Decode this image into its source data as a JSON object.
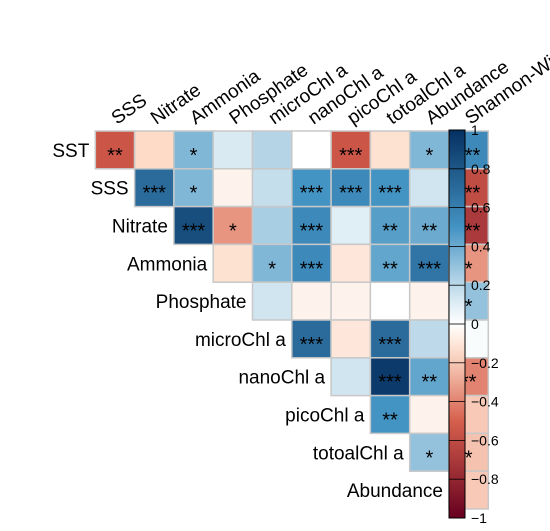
{
  "chart_data": {
    "type": "heatmap",
    "layout": "upper-triangle correlation matrix",
    "column_labels": [
      "SSS",
      "Nitrate",
      "Ammonia",
      "Phosphate",
      "microChl a",
      "nanoChl a",
      "picoChl a",
      "totoalChl a",
      "Abundance",
      "Shannon-Wiener"
    ],
    "row_labels": [
      "SST",
      "SSS",
      "Nitrate",
      "Ammonia",
      "Phosphate",
      "microChl a",
      "nanoChl a",
      "picoChl a",
      "totoalChl a",
      "Abundance"
    ],
    "values": [
      [
        -0.55,
        -0.15,
        0.35,
        0.12,
        0.22,
        0.0,
        -0.55,
        -0.12,
        0.35,
        0.55
      ],
      [
        null,
        0.7,
        0.35,
        -0.05,
        0.18,
        0.5,
        0.55,
        0.5,
        0.15,
        -0.6
      ],
      [
        null,
        null,
        0.85,
        -0.35,
        0.25,
        0.55,
        0.1,
        0.45,
        0.4,
        -0.7
      ],
      [
        null,
        null,
        null,
        -0.12,
        0.35,
        0.55,
        -0.1,
        0.42,
        0.65,
        -0.35
      ],
      [
        null,
        null,
        null,
        null,
        0.15,
        -0.05,
        -0.05,
        0.0,
        -0.05,
        0.3
      ],
      [
        null,
        null,
        null,
        null,
        null,
        0.7,
        -0.1,
        0.7,
        0.2,
        0.02
      ],
      [
        null,
        null,
        null,
        null,
        null,
        null,
        0.15,
        0.95,
        0.42,
        -0.4
      ],
      [
        null,
        null,
        null,
        null,
        null,
        null,
        null,
        0.5,
        -0.05,
        -0.2
      ],
      [
        null,
        null,
        null,
        null,
        null,
        null,
        null,
        null,
        0.3,
        -0.22
      ],
      [
        null,
        null,
        null,
        null,
        null,
        null,
        null,
        null,
        null,
        -0.2
      ]
    ],
    "significance": [
      [
        "**",
        "",
        "*",
        "",
        "",
        "",
        "***",
        "",
        "*",
        "***"
      ],
      [
        "",
        "***",
        "*",
        "",
        "",
        "***",
        "***",
        "***",
        "",
        "***"
      ],
      [
        "",
        "",
        "***",
        "*",
        "",
        "***",
        "",
        "**",
        "**",
        "***"
      ],
      [
        "",
        "",
        "",
        "",
        "*",
        "***",
        "",
        "**",
        "***",
        "*"
      ],
      [
        "",
        "",
        "",
        "",
        "",
        "",
        "",
        "",
        "",
        "*"
      ],
      [
        "",
        "",
        "",
        "",
        "",
        "***",
        "",
        "***",
        "",
        ""
      ],
      [
        "",
        "",
        "",
        "",
        "",
        "",
        "",
        "***",
        "**",
        "**"
      ],
      [
        "",
        "",
        "",
        "",
        "",
        "",
        "",
        "**",
        "",
        ""
      ],
      [
        "",
        "",
        "",
        "",
        "",
        "",
        "",
        "",
        "*",
        "*"
      ],
      [
        "",
        "",
        "",
        "",
        "",
        "",
        "",
        "",
        "",
        ""
      ]
    ],
    "colorbar": {
      "range": [
        -1,
        1
      ],
      "ticks": [
        "1",
        "0.8",
        "0.6",
        "0.4",
        "0.2",
        "0",
        "−0.2",
        "−0.4",
        "−0.6",
        "−0.8",
        "−1"
      ],
      "colors": {
        "neg_end": "#67001f",
        "neg_mid": "#d6604d",
        "neg_light": "#fddbc7",
        "zero": "#ffffff",
        "pos_light": "#d1e5f0",
        "pos_mid": "#4393c3",
        "pos_end": "#053061"
      }
    },
    "grid_color": "#c8c8c8"
  }
}
